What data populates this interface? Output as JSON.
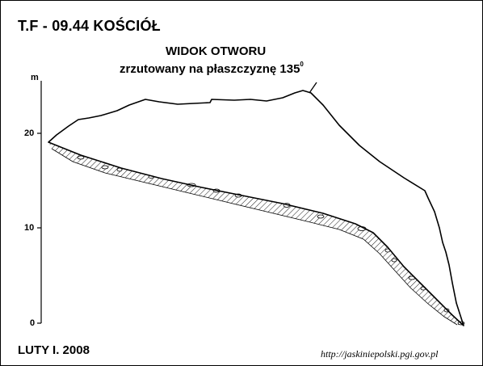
{
  "title": "T.F - 09.44  KOŚCIÓŁ",
  "view": {
    "title": "WIDOK OTWORU",
    "subtitle": "zrzutowany na płaszczyznę 135",
    "subtitle_superscript": "0"
  },
  "axis": {
    "unit": "m",
    "tick_labels": [
      "20",
      "10",
      "0"
    ]
  },
  "date": "LUTY I. 2008",
  "source": "http://jaskiniepolski.pgi.gov.pl",
  "colors": {
    "ink": "#000000",
    "background": "#ffffff"
  }
}
